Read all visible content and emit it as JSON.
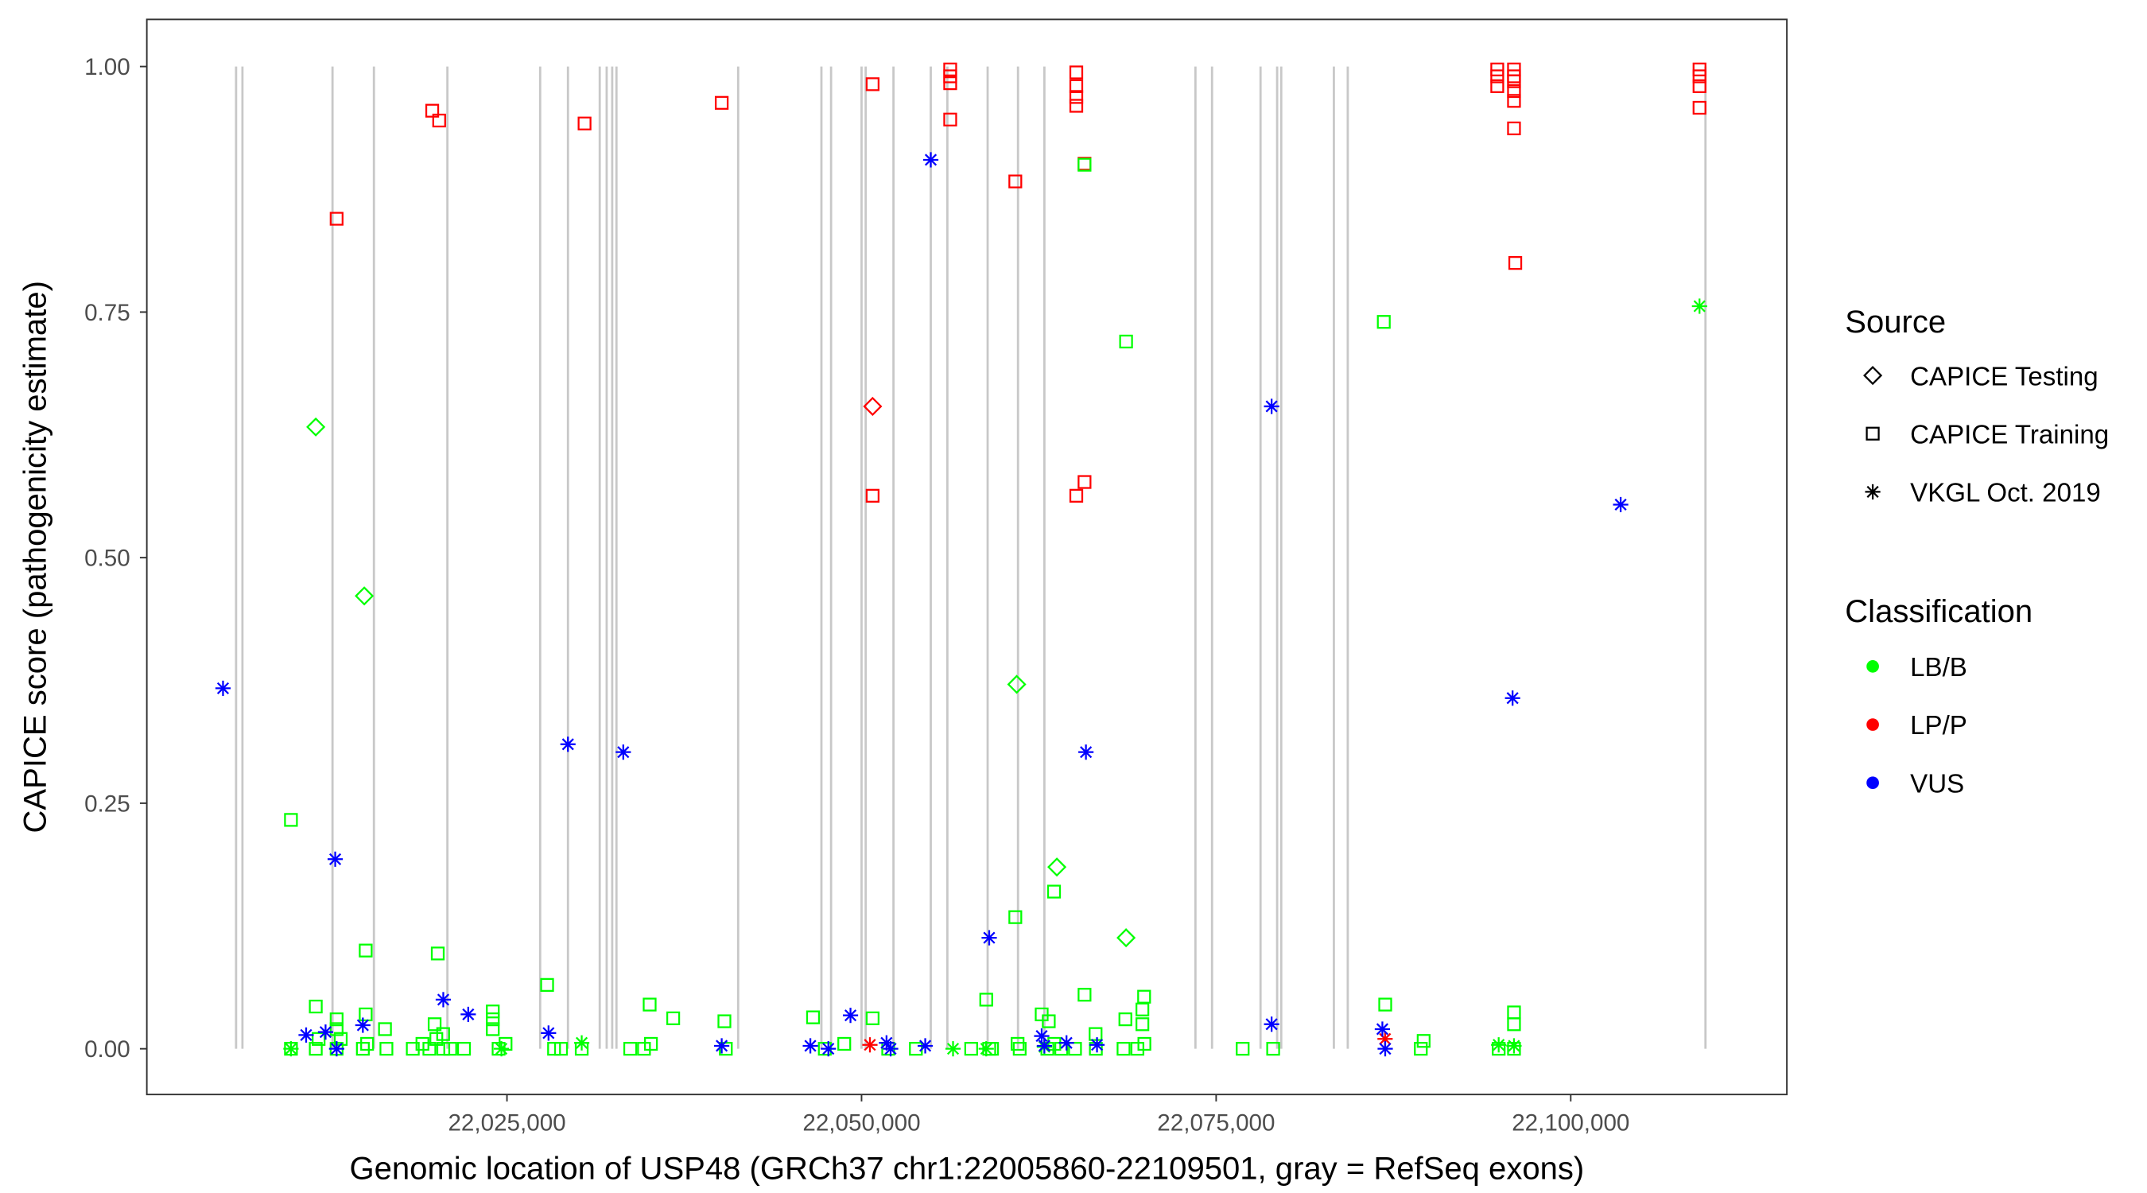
{
  "chart_data": {
    "type": "scatter",
    "xlabel": "Genomic location of USP48 (GRCh37 chr1:22005860-22109501, gray = RefSeq exons)",
    "ylabel": "CAPICE score (pathogenicity estimate)",
    "xlim": [
      22001000,
      22117000
    ],
    "ylim": [
      -0.047,
      1.047
    ],
    "x_ticks": [
      22025000,
      22050000,
      22075000,
      22100000
    ],
    "x_tick_labels": [
      "22,025,000",
      "22,050,000",
      "22,075,000",
      "22,100,000"
    ],
    "y_ticks": [
      0,
      0.25,
      0.5,
      0.75,
      1.0
    ],
    "y_tick_labels": [
      "0.00",
      "0.25",
      "0.50",
      "0.75",
      "1.00"
    ],
    "grid": false,
    "exon_lines_color": "#c8c8c8",
    "exons": [
      22005900,
      22006350,
      22012700,
      22015620,
      22020800,
      22027340,
      22029300,
      22031540,
      22032030,
      22032420,
      22032720,
      22041300,
      22047170,
      22047850,
      22050000,
      22050290,
      22052250,
      22054880,
      22056050,
      22058890,
      22061030,
      22062890,
      22073540,
      22074710,
      22078130,
      22079300,
      22079590,
      22083300,
      22084280,
      22109500
    ],
    "legend": {
      "placement": "right",
      "source_title": "Source",
      "source_items": [
        {
          "label": "CAPICE Testing",
          "shape": "diamond"
        },
        {
          "label": "CAPICE Training",
          "shape": "square"
        },
        {
          "label": "VKGL Oct. 2019",
          "shape": "asterisk"
        }
      ],
      "class_title": "Classification",
      "class_items": [
        {
          "label": "LB/B",
          "color": "#00FF00"
        },
        {
          "label": "LP/P",
          "color": "#FF0000"
        },
        {
          "label": "VUS",
          "color": "#0000FF"
        }
      ]
    },
    "series": [
      {
        "source": "CAPICE Training",
        "class": "LP/P",
        "points": [
          [
            22019730,
            0.955
          ],
          [
            22020220,
            0.945
          ],
          [
            22012990,
            0.845
          ],
          [
            22030470,
            0.942
          ],
          [
            22040140,
            0.963
          ],
          [
            22050780,
            0.982
          ],
          [
            22056250,
            0.997
          ],
          [
            22056250,
            0.99
          ],
          [
            22056250,
            0.983
          ],
          [
            22056250,
            0.946
          ],
          [
            22060840,
            0.883
          ],
          [
            22065140,
            0.994
          ],
          [
            22065140,
            0.98
          ],
          [
            22065140,
            0.969
          ],
          [
            22065140,
            0.96
          ],
          [
            22065720,
            0.901
          ],
          [
            22050780,
            0.563
          ],
          [
            22065140,
            0.563
          ],
          [
            22065720,
            0.577
          ],
          [
            22094820,
            0.997
          ],
          [
            22094820,
            0.99
          ],
          [
            22094820,
            0.98
          ],
          [
            22096000,
            0.997
          ],
          [
            22096000,
            0.99
          ],
          [
            22096000,
            0.985
          ],
          [
            22096000,
            0.975
          ],
          [
            22096000,
            0.965
          ],
          [
            22096000,
            0.937
          ],
          [
            22096090,
            0.8
          ],
          [
            22109080,
            0.997
          ],
          [
            22109080,
            0.99
          ],
          [
            22109080,
            0.98
          ],
          [
            22109080,
            0.958
          ]
        ]
      },
      {
        "source": "CAPICE Testing",
        "class": "LP/P",
        "points": [
          [
            22050780,
            0.654
          ]
        ]
      },
      {
        "source": "VKGL Oct. 2019",
        "class": "LP/P",
        "points": [
          [
            22050590,
            0.004
          ],
          [
            22086910,
            0.01
          ]
        ]
      },
      {
        "source": "CAPICE Training",
        "class": "LB/B",
        "points": [
          [
            22009770,
            0.233
          ],
          [
            22015040,
            0.1
          ],
          [
            22020120,
            0.097
          ],
          [
            22027830,
            0.065
          ],
          [
            22068650,
            0.72
          ],
          [
            22086820,
            0.74
          ],
          [
            22060840,
            0.134
          ],
          [
            22063570,
            0.16
          ],
          [
            22065720,
            0.9
          ],
          [
            22058790,
            0.05
          ],
          [
            22065720,
            0.055
          ],
          [
            22069920,
            0.053
          ],
          [
            22096000,
            0.037
          ],
          [
            22096000,
            0.025
          ],
          [
            22086920,
            0.045
          ],
          [
            22011520,
            0.043
          ],
          [
            22035060,
            0.045
          ],
          [
            22036720,
            0.031
          ],
          [
            22040330,
            0.028
          ],
          [
            22046580,
            0.032
          ],
          [
            22050780,
            0.031
          ],
          [
            22012990,
            0.03
          ],
          [
            22012990,
            0.02
          ],
          [
            22015040,
            0.035
          ],
          [
            22016400,
            0.02
          ],
          [
            22019900,
            0.025
          ],
          [
            22020500,
            0.015
          ],
          [
            22024000,
            0.038
          ],
          [
            22024000,
            0.03
          ],
          [
            22024000,
            0.02
          ],
          [
            22062700,
            0.035
          ],
          [
            22063200,
            0.028
          ],
          [
            22066500,
            0.015
          ],
          [
            22068600,
            0.03
          ],
          [
            22069800,
            0.04
          ],
          [
            22069800,
            0.025
          ],
          [
            22059000,
            0.0
          ],
          [
            22061000,
            0.005
          ],
          [
            22009770,
            0.0
          ],
          [
            22011520,
            0.0
          ],
          [
            22011720,
            0.01
          ],
          [
            22012990,
            0.0
          ],
          [
            22013280,
            0.01
          ],
          [
            22014840,
            0.0
          ],
          [
            22015140,
            0.005
          ],
          [
            22016500,
            0.0
          ],
          [
            22018360,
            0.0
          ],
          [
            22019040,
            0.005
          ],
          [
            22019530,
            0.0
          ],
          [
            22020020,
            0.01
          ],
          [
            22020510,
            0.0
          ],
          [
            22021000,
            0.0
          ],
          [
            22021970,
            0.0
          ],
          [
            22024410,
            0.0
          ],
          [
            22024900,
            0.005
          ],
          [
            22028320,
            0.0
          ],
          [
            22028810,
            0.0
          ],
          [
            22030270,
            0.0
          ],
          [
            22033690,
            0.0
          ],
          [
            22034660,
            0.0
          ],
          [
            22035150,
            0.005
          ],
          [
            22040430,
            0.0
          ],
          [
            22047410,
            0.0
          ],
          [
            22048780,
            0.005
          ],
          [
            22051880,
            0.0
          ],
          [
            22053830,
            0.0
          ],
          [
            22057730,
            0.0
          ],
          [
            22059200,
            0.0
          ],
          [
            22061150,
            0.0
          ],
          [
            22063100,
            0.0
          ],
          [
            22063590,
            0.005
          ],
          [
            22064080,
            0.0
          ],
          [
            22065050,
            0.0
          ],
          [
            22066520,
            0.0
          ],
          [
            22068470,
            0.0
          ],
          [
            22069450,
            0.0
          ],
          [
            22069940,
            0.005
          ],
          [
            22076870,
            0.0
          ],
          [
            22079020,
            0.0
          ],
          [
            22089430,
            0.0
          ],
          [
            22089630,
            0.008
          ],
          [
            22094920,
            0.0
          ],
          [
            22096000,
            0.0
          ]
        ]
      },
      {
        "source": "CAPICE Testing",
        "class": "LB/B",
        "points": [
          [
            22011520,
            0.633
          ],
          [
            22014940,
            0.461
          ],
          [
            22060940,
            0.371
          ],
          [
            22063770,
            0.185
          ],
          [
            22068650,
            0.113
          ]
        ]
      },
      {
        "source": "VKGL Oct. 2019",
        "class": "LB/B",
        "points": [
          [
            22109080,
            0.756
          ],
          [
            22030270,
            0.006
          ],
          [
            22056450,
            0.0
          ],
          [
            22058790,
            0.0
          ],
          [
            22024610,
            0.0
          ],
          [
            22009770,
            0.0
          ],
          [
            22094920,
            0.004
          ],
          [
            22096000,
            0.003
          ],
          [
            22062890,
            0.002
          ]
        ]
      },
      {
        "source": "VKGL Oct. 2019",
        "class": "VUS",
        "points": [
          [
            22004980,
            0.367
          ],
          [
            22012890,
            0.193
          ],
          [
            22029300,
            0.31
          ],
          [
            22033200,
            0.302
          ],
          [
            22054880,
            0.905
          ],
          [
            22059000,
            0.113
          ],
          [
            22065820,
            0.302
          ],
          [
            22078910,
            0.654
          ],
          [
            22103520,
            0.554
          ],
          [
            22095900,
            0.357
          ],
          [
            22020510,
            0.05
          ],
          [
            22022270,
            0.035
          ],
          [
            22014840,
            0.024
          ],
          [
            22027930,
            0.016
          ],
          [
            22049220,
            0.034
          ],
          [
            22078910,
            0.025
          ],
          [
            22086720,
            0.02
          ],
          [
            22010840,
            0.014
          ],
          [
            22012210,
            0.017
          ],
          [
            22012990,
            0.0
          ],
          [
            22040140,
            0.003
          ],
          [
            22046390,
            0.003
          ],
          [
            22047660,
            0.0
          ],
          [
            22051760,
            0.006
          ],
          [
            22052050,
            0.0
          ],
          [
            22054490,
            0.003
          ],
          [
            22062700,
            0.013
          ],
          [
            22062890,
            0.003
          ],
          [
            22064450,
            0.006
          ],
          [
            22066600,
            0.004
          ],
          [
            22086920,
            0.0
          ]
        ]
      }
    ]
  }
}
